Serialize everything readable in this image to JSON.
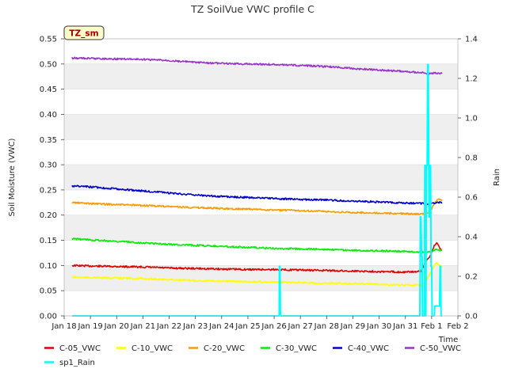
{
  "chart_data": {
    "type": "line",
    "title": "TZ SoilVue VWC profile C",
    "badge": "TZ_sm",
    "xlabel": "Time",
    "ylabel": "Soil Moisture (VWC)",
    "y2label": "Rain",
    "xlim": [
      0,
      15
    ],
    "ylim": [
      0,
      0.55
    ],
    "y2lim": [
      0,
      1.4
    ],
    "x_tick_labels": [
      "Jan 18",
      "Jan 19",
      "Jan 20",
      "Jan 21",
      "Jan 22",
      "Jan 23",
      "Jan 24",
      "Jan 25",
      "Jan 26",
      "Jan 27",
      "Jan 28",
      "Jan 29",
      "Jan 30",
      "Jan 31",
      "Feb 1",
      "Feb 2"
    ],
    "y_ticks": [
      "0.00",
      "0.05",
      "0.10",
      "0.15",
      "0.20",
      "0.25",
      "0.30",
      "0.35",
      "0.40",
      "0.45",
      "0.50",
      "0.55"
    ],
    "y2_ticks": [
      "0.0",
      "0.2",
      "0.4",
      "0.6",
      "0.8",
      "1.0",
      "1.2",
      "1.4"
    ],
    "grid": "horizontal bands",
    "legend_position": "bottom",
    "series": [
      {
        "name": "C-05_VWC",
        "color": "#dd0000",
        "axis": "left",
        "x": [
          0.3,
          1,
          2,
          3,
          4,
          5,
          6,
          7,
          8,
          9,
          10,
          11,
          12,
          13,
          13.6,
          13.8,
          13.95,
          14.1,
          14.2,
          14.3,
          14.4
        ],
        "y": [
          0.1,
          0.099,
          0.098,
          0.097,
          0.095,
          0.094,
          0.093,
          0.092,
          0.092,
          0.091,
          0.09,
          0.089,
          0.088,
          0.087,
          0.088,
          0.11,
          0.12,
          0.14,
          0.145,
          0.135,
          0.13
        ]
      },
      {
        "name": "C-10_VWC",
        "color": "#ffff00",
        "axis": "left",
        "x": [
          0.3,
          1,
          2,
          3,
          4,
          5,
          6,
          7,
          8,
          9,
          10,
          11,
          12,
          13,
          13.6,
          13.8,
          13.95,
          14.1,
          14.2,
          14.3,
          14.4
        ],
        "y": [
          0.077,
          0.076,
          0.075,
          0.074,
          0.072,
          0.07,
          0.069,
          0.068,
          0.067,
          0.066,
          0.065,
          0.064,
          0.063,
          0.061,
          0.061,
          0.07,
          0.085,
          0.1,
          0.106,
          0.1,
          0.097
        ]
      },
      {
        "name": "C-20_VWC",
        "color": "#ff9900",
        "axis": "left",
        "x": [
          0.3,
          1,
          2,
          3,
          4,
          5,
          6,
          7,
          8,
          9,
          10,
          11,
          12,
          13,
          13.6,
          13.8,
          13.95,
          14.1,
          14.2,
          14.3,
          14.4
        ],
        "y": [
          0.225,
          0.223,
          0.221,
          0.219,
          0.217,
          0.215,
          0.213,
          0.212,
          0.21,
          0.209,
          0.207,
          0.205,
          0.204,
          0.203,
          0.202,
          0.203,
          0.208,
          0.222,
          0.23,
          0.231,
          0.229
        ]
      },
      {
        "name": "C-30_VWC",
        "color": "#00ee00",
        "axis": "left",
        "x": [
          0.3,
          1,
          2,
          3,
          4,
          5,
          6,
          7,
          8,
          9,
          10,
          11,
          12,
          13,
          13.6,
          13.8,
          13.95,
          14.1,
          14.2,
          14.3,
          14.4
        ],
        "y": [
          0.153,
          0.151,
          0.148,
          0.145,
          0.142,
          0.14,
          0.138,
          0.136,
          0.134,
          0.133,
          0.132,
          0.13,
          0.129,
          0.128,
          0.127,
          0.126,
          0.127,
          0.13,
          0.132,
          0.131,
          0.13
        ]
      },
      {
        "name": "C-40_VWC",
        "color": "#0000cc",
        "axis": "left",
        "x": [
          0.3,
          1,
          2,
          3,
          4,
          5,
          6,
          7,
          8,
          9,
          10,
          11,
          12,
          13,
          13.6,
          13.8,
          13.95,
          14.1,
          14.2,
          14.3,
          14.4
        ],
        "y": [
          0.258,
          0.256,
          0.252,
          0.248,
          0.244,
          0.24,
          0.237,
          0.235,
          0.233,
          0.231,
          0.23,
          0.228,
          0.226,
          0.224,
          0.223,
          0.222,
          0.223,
          0.224,
          0.225,
          0.225,
          0.225
        ]
      },
      {
        "name": "C-50_VWC",
        "color": "#9933cc",
        "axis": "left",
        "x": [
          0.3,
          1,
          2,
          3,
          4,
          5,
          6,
          7,
          8,
          9,
          10,
          11,
          12,
          13,
          13.6,
          13.8,
          13.95,
          14.1,
          14.2,
          14.3,
          14.4
        ],
        "y": [
          0.512,
          0.511,
          0.51,
          0.509,
          0.507,
          0.503,
          0.501,
          0.5,
          0.499,
          0.497,
          0.495,
          0.491,
          0.488,
          0.485,
          0.483,
          0.481,
          0.481,
          0.482,
          0.481,
          0.481,
          0.481
        ]
      },
      {
        "name": "sp1_Rain",
        "color": "#00ffff",
        "axis": "right",
        "x": [
          0.3,
          8.19,
          8.2,
          8.22,
          8.24,
          8.25,
          13.55,
          13.57,
          13.59,
          13.62,
          13.64,
          13.65,
          13.72,
          13.74,
          13.76,
          13.78,
          13.8,
          13.83,
          13.85,
          13.87,
          13.9,
          13.92,
          13.94,
          13.96,
          13.98,
          14.0,
          14.02,
          14.05,
          14.1,
          14.12,
          14.3,
          14.32,
          14.34,
          14.36,
          14.4
        ],
        "y": [
          0,
          0,
          0.25,
          0.25,
          0,
          0,
          0,
          0.5,
          0.5,
          0.3,
          0.3,
          0,
          0,
          0.76,
          0.76,
          0,
          0.76,
          0.76,
          1.27,
          1.27,
          0.5,
          0.5,
          0.76,
          0.76,
          0.25,
          0.25,
          0,
          0,
          0,
          0.05,
          0.05,
          0.25,
          0.25,
          0,
          0
        ]
      }
    ]
  }
}
